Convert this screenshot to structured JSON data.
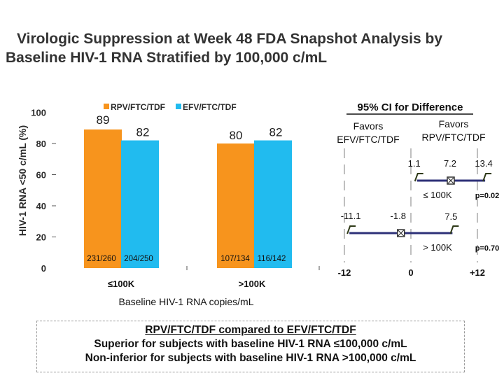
{
  "title": {
    "line1": "Virologic Suppression at Week 48 FDA Snapshot Analysis by",
    "line2": "Baseline HIV-1 RNA Stratified by 100,000 c/mL"
  },
  "colors": {
    "rpv": "#f7941d",
    "efv": "#21bbef",
    "ci_line": "#2e3178",
    "guide": "#7f7f7f"
  },
  "chart_data": [
    {
      "type": "bar",
      "title": "",
      "ylabel": "HIV-1 RNA <50 c/mL (%)",
      "xlabel": "Baseline HIV-1 RNA copies/mL",
      "ylim": [
        0,
        100
      ],
      "yticks": [
        0,
        20,
        40,
        60,
        80,
        100
      ],
      "ytick_labels": [
        "0",
        "20",
        "40",
        "60",
        "80",
        "100"
      ],
      "categories": [
        "≤100K",
        ">100K"
      ],
      "series": [
        {
          "name": "RPV/FTC/TDF",
          "values": [
            89,
            80
          ],
          "value_labels": [
            "89",
            "80"
          ],
          "counts": [
            "231/260",
            "107/134"
          ]
        },
        {
          "name": "EFV/FTC/TDF",
          "values": [
            82,
            82
          ],
          "value_labels": [
            "82",
            "82"
          ],
          "counts": [
            "204/250",
            "116/142"
          ]
        }
      ]
    },
    {
      "type": "forest",
      "title": "95% CI for Difference",
      "xlim": [
        -12,
        12
      ],
      "xtick_labels": [
        "-12",
        "0",
        "+12"
      ],
      "favors_left": "Favors EFV/FTC/TDF",
      "favors_right_line1": "Favors",
      "favors_right_line2": "RPV/FTC/TDF",
      "rows": [
        {
          "label": "≤ 100K",
          "lower": 1.1,
          "estimate": 7.2,
          "upper": 13.4,
          "lower_label": "1.1",
          "estimate_label": "7.2",
          "upper_label": "13.4",
          "p_value": "p=0.02"
        },
        {
          "label": "> 100K",
          "lower": -11.1,
          "estimate": -1.8,
          "upper": 7.5,
          "lower_label": "-11.1",
          "estimate_label": "-1.8",
          "upper_label": "7.5",
          "p_value": "p=0.70"
        }
      ]
    }
  ],
  "conclusion": {
    "heading": "RPV/FTC/TDF compared to EFV/FTC/TDF",
    "line1": "Superior for subjects with baseline HIV-1 RNA ≤100,000 c/mL",
    "line2": "Non-inferior for subjects with baseline HIV-1 RNA >100,000 c/mL"
  }
}
